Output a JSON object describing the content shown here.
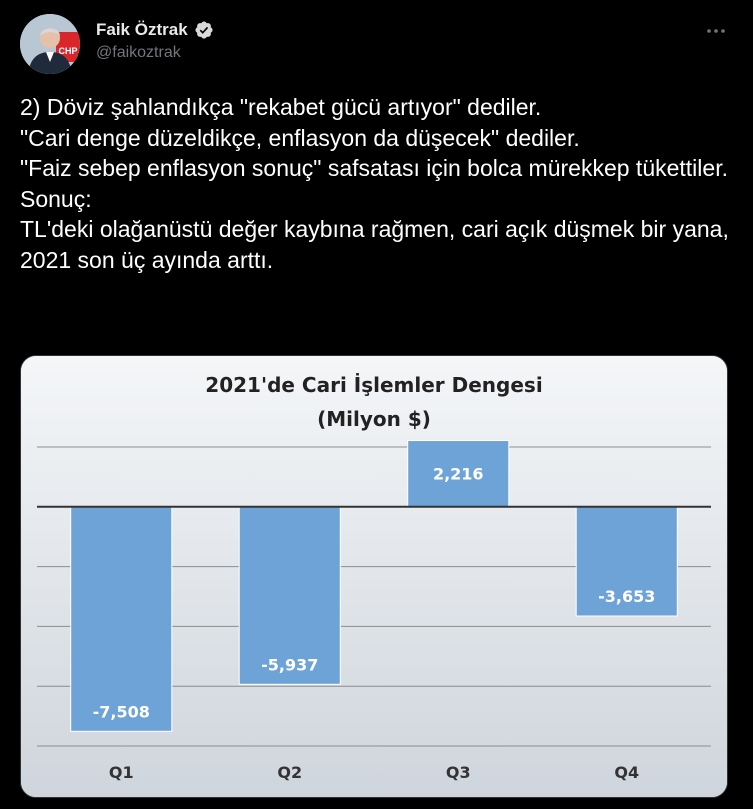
{
  "author": {
    "display_name": "Faik Öztrak",
    "handle": "@faikoztrak",
    "verified_icon": "verified-badge-icon",
    "avatar_badge_text": "CHP"
  },
  "menu": {
    "icon": "more-options-icon",
    "label": "···"
  },
  "tweet": {
    "text": "2) Döviz şahlandıkça \"rekabet gücü artıyor\" dediler.\n\"Cari denge düzeldikçe, enflasyon da düşecek\" dediler.\n\"Faiz sebep enflasyon sonuç\" safsatası için bolca mürekkep tükettiler.\nSonuç:\nTL'deki olağanüstü değer kaybına rağmen, cari açık düşmek bir yana, 2021 son üç ayında arttı."
  },
  "colors": {
    "background": "#000000",
    "text": "#ffffff",
    "muted": "#71767b",
    "verified": "#d9d9d9",
    "bar_fill": "#6ea3d8",
    "bar_stroke": "#ffffff",
    "chart_bg": "#e0e4e9"
  },
  "chart_data": {
    "type": "bar",
    "title": "2021'de Cari İşlemler Dengesi",
    "subtitle": "(Milyon $)",
    "categories": [
      "Q1",
      "Q2",
      "Q3",
      "Q4"
    ],
    "values": [
      -7508,
      -5937,
      2216,
      -3653
    ],
    "value_labels": [
      "-7,508",
      "-5,937",
      "2,216",
      "-3,653"
    ],
    "ylim": [
      -8000,
      2000
    ],
    "gridlines": [
      2000,
      -2000,
      -4000,
      -6000,
      -8000
    ],
    "grid": true,
    "legend": "none"
  }
}
